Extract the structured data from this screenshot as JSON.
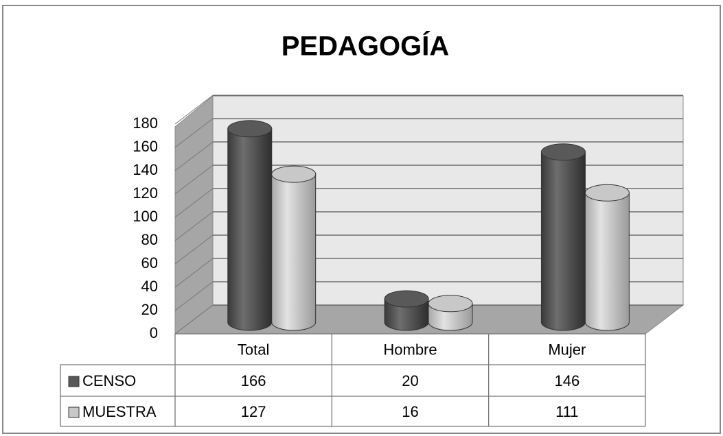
{
  "chart_data": {
    "type": "bar3d",
    "title": "PEDAGOGÍA",
    "categories": [
      "Total",
      "Hombre",
      "Mujer"
    ],
    "series": [
      {
        "name": "CENSO",
        "color": "#595959",
        "values": [
          166,
          20,
          146
        ]
      },
      {
        "name": "MUESTRA",
        "color": "#c8c8c8",
        "values": [
          127,
          16,
          111
        ]
      }
    ],
    "ylim": [
      0,
      180
    ],
    "yticks": [
      0,
      20,
      40,
      60,
      80,
      100,
      120,
      140,
      160,
      180
    ],
    "grid": true
  }
}
